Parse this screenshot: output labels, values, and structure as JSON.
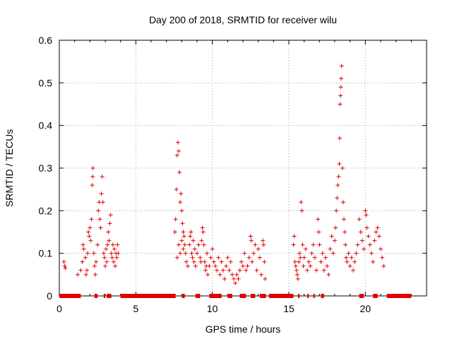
{
  "chart_data": {
    "type": "scatter",
    "title": "Day 200 of 2018, SRMTID for receiver wilu",
    "xlabel": "GPS time / hours",
    "ylabel": "SRMTID / TECUs",
    "xlim": [
      0,
      24
    ],
    "ylim": [
      0,
      0.6
    ],
    "xticks": [
      0,
      5,
      10,
      15,
      20
    ],
    "yticks": [
      0,
      0.1,
      0.2,
      0.3,
      0.4,
      0.5,
      0.6
    ],
    "xtick_labels": [
      "0",
      "5",
      "10",
      "15",
      "20"
    ],
    "ytick_labels": [
      "0",
      "0.1",
      "0.2",
      "0.3",
      "0.4",
      "0.5",
      "0.6"
    ],
    "grid": true,
    "marker": "+",
    "color": "#e00000",
    "series": [
      {
        "name": "SRMTID",
        "points": [
          [
            0.3,
            0.08
          ],
          [
            0.35,
            0.07
          ],
          [
            0.4,
            0.065
          ],
          [
            1.2,
            0.05
          ],
          [
            1.4,
            0.06
          ],
          [
            1.5,
            0.08
          ],
          [
            1.55,
            0.12
          ],
          [
            1.6,
            0.11
          ],
          [
            1.7,
            0.09
          ],
          [
            1.75,
            0.05
          ],
          [
            1.8,
            0.06
          ],
          [
            1.85,
            0.1
          ],
          [
            1.9,
            0.15
          ],
          [
            1.95,
            0.14
          ],
          [
            2.0,
            0.16
          ],
          [
            2.05,
            0.13
          ],
          [
            2.1,
            0.18
          ],
          [
            2.15,
            0.26
          ],
          [
            2.18,
            0.28
          ],
          [
            2.2,
            0.3
          ],
          [
            2.25,
            0.1
          ],
          [
            2.3,
            0.07
          ],
          [
            2.35,
            0.05
          ],
          [
            2.4,
            0.08
          ],
          [
            2.5,
            0.12
          ],
          [
            2.55,
            0.2
          ],
          [
            2.6,
            0.22
          ],
          [
            2.65,
            0.18
          ],
          [
            2.7,
            0.16
          ],
          [
            2.75,
            0.24
          ],
          [
            2.8,
            0.28
          ],
          [
            2.85,
            0.22
          ],
          [
            2.9,
            0.1
          ],
          [
            2.95,
            0.09
          ],
          [
            3.0,
            0.07
          ],
          [
            3.05,
            0.11
          ],
          [
            3.1,
            0.08
          ],
          [
            3.15,
            0.12
          ],
          [
            3.2,
            0.15
          ],
          [
            3.25,
            0.13
          ],
          [
            3.3,
            0.17
          ],
          [
            3.35,
            0.19
          ],
          [
            3.4,
            0.1
          ],
          [
            3.45,
            0.09
          ],
          [
            3.5,
            0.12
          ],
          [
            3.55,
            0.08
          ],
          [
            3.6,
            0.11
          ],
          [
            3.65,
            0.07
          ],
          [
            3.7,
            0.1
          ],
          [
            3.75,
            0.09
          ],
          [
            3.8,
            0.12
          ],
          [
            3.85,
            0.1
          ],
          [
            7.55,
            0.15
          ],
          [
            7.6,
            0.18
          ],
          [
            7.65,
            0.25
          ],
          [
            7.7,
            0.33
          ],
          [
            7.75,
            0.36
          ],
          [
            7.8,
            0.34
          ],
          [
            7.85,
            0.29
          ],
          [
            7.9,
            0.22
          ],
          [
            7.95,
            0.24
          ],
          [
            8.0,
            0.2
          ],
          [
            8.05,
            0.17
          ],
          [
            8.1,
            0.15
          ],
          [
            8.15,
            0.14
          ],
          [
            8.2,
            0.12
          ],
          [
            8.25,
            0.1
          ],
          [
            8.3,
            0.08
          ],
          [
            7.7,
            0.09
          ],
          [
            7.8,
            0.12
          ],
          [
            7.9,
            0.1
          ],
          [
            8.0,
            0.13
          ],
          [
            8.1,
            0.11
          ],
          [
            8.4,
            0.07
          ],
          [
            8.5,
            0.12
          ],
          [
            8.55,
            0.14
          ],
          [
            8.6,
            0.15
          ],
          [
            8.65,
            0.1
          ],
          [
            8.7,
            0.09
          ],
          [
            8.75,
            0.13
          ],
          [
            8.8,
            0.08
          ],
          [
            8.85,
            0.11
          ],
          [
            8.9,
            0.07
          ],
          [
            9.0,
            0.1
          ],
          [
            9.1,
            0.12
          ],
          [
            9.2,
            0.09
          ],
          [
            9.25,
            0.08
          ],
          [
            9.3,
            0.13
          ],
          [
            9.35,
            0.16
          ],
          [
            9.4,
            0.15
          ],
          [
            9.45,
            0.12
          ],
          [
            9.5,
            0.08
          ],
          [
            9.55,
            0.06
          ],
          [
            9.6,
            0.07
          ],
          [
            9.65,
            0.1
          ],
          [
            9.7,
            0.05
          ],
          [
            9.8,
            0.07
          ],
          [
            9.9,
            0.09
          ],
          [
            10.0,
            0.11
          ],
          [
            10.1,
            0.08
          ],
          [
            10.2,
            0.07
          ],
          [
            10.3,
            0.06
          ],
          [
            10.4,
            0.09
          ],
          [
            10.5,
            0.05
          ],
          [
            10.6,
            0.08
          ],
          [
            10.7,
            0.06
          ],
          [
            10.8,
            0.04
          ],
          [
            10.9,
            0.07
          ],
          [
            11.0,
            0.09
          ],
          [
            11.1,
            0.06
          ],
          [
            11.2,
            0.08
          ],
          [
            11.3,
            0.05
          ],
          [
            11.4,
            0.04
          ],
          [
            11.5,
            0.03
          ],
          [
            11.6,
            0.05
          ],
          [
            11.7,
            0.04
          ],
          [
            11.8,
            0.06
          ],
          [
            11.9,
            0.08
          ],
          [
            12.0,
            0.07
          ],
          [
            12.1,
            0.1
          ],
          [
            12.2,
            0.06
          ],
          [
            12.3,
            0.07
          ],
          [
            12.4,
            0.09
          ],
          [
            12.5,
            0.14
          ],
          [
            12.55,
            0.13
          ],
          [
            12.6,
            0.08
          ],
          [
            12.7,
            0.1
          ],
          [
            12.8,
            0.12
          ],
          [
            12.9,
            0.06
          ],
          [
            13.0,
            0.11
          ],
          [
            13.1,
            0.09
          ],
          [
            13.2,
            0.05
          ],
          [
            13.3,
            0.13
          ],
          [
            13.35,
            0.12
          ],
          [
            13.4,
            0.08
          ],
          [
            13.45,
            0.04
          ],
          [
            15.3,
            0.12
          ],
          [
            15.35,
            0.14
          ],
          [
            15.4,
            0.08
          ],
          [
            15.45,
            0.07
          ],
          [
            15.5,
            0.06
          ],
          [
            15.55,
            0.05
          ],
          [
            15.6,
            0.04
          ],
          [
            15.65,
            0.08
          ],
          [
            15.7,
            0.1
          ],
          [
            15.75,
            0.09
          ],
          [
            15.8,
            0.22
          ],
          [
            15.85,
            0.2
          ],
          [
            15.9,
            0.12
          ],
          [
            15.95,
            0.07
          ],
          [
            16.0,
            0.09
          ],
          [
            16.1,
            0.11
          ],
          [
            16.2,
            0.06
          ],
          [
            16.3,
            0.08
          ],
          [
            16.4,
            0.07
          ],
          [
            16.5,
            0.1
          ],
          [
            16.6,
            0.12
          ],
          [
            16.7,
            0.09
          ],
          [
            16.8,
            0.06
          ],
          [
            16.9,
            0.18
          ],
          [
            16.95,
            0.15
          ],
          [
            17.0,
            0.12
          ],
          [
            17.1,
            0.08
          ],
          [
            17.2,
            0.1
          ],
          [
            17.3,
            0.06
          ],
          [
            17.4,
            0.09
          ],
          [
            17.5,
            0.07
          ],
          [
            17.6,
            0.05
          ],
          [
            17.7,
            0.11
          ],
          [
            17.8,
            0.14
          ],
          [
            17.9,
            0.1
          ],
          [
            18.0,
            0.13
          ],
          [
            18.05,
            0.16
          ],
          [
            18.1,
            0.2
          ],
          [
            18.15,
            0.23
          ],
          [
            18.2,
            0.26
          ],
          [
            18.25,
            0.28
          ],
          [
            18.3,
            0.31
          ],
          [
            18.32,
            0.37
          ],
          [
            18.35,
            0.45
          ],
          [
            18.38,
            0.47
          ],
          [
            18.4,
            0.49
          ],
          [
            18.42,
            0.51
          ],
          [
            18.45,
            0.54
          ],
          [
            18.5,
            0.3
          ],
          [
            18.55,
            0.22
          ],
          [
            18.6,
            0.18
          ],
          [
            18.65,
            0.15
          ],
          [
            18.7,
            0.12
          ],
          [
            18.75,
            0.09
          ],
          [
            18.8,
            0.08
          ],
          [
            18.9,
            0.1
          ],
          [
            19.0,
            0.07
          ],
          [
            19.1,
            0.09
          ],
          [
            19.2,
            0.06
          ],
          [
            19.3,
            0.08
          ],
          [
            19.4,
            0.1
          ],
          [
            19.5,
            0.12
          ],
          [
            19.6,
            0.18
          ],
          [
            19.7,
            0.15
          ],
          [
            19.8,
            0.13
          ],
          [
            19.9,
            0.11
          ],
          [
            20.0,
            0.2
          ],
          [
            20.05,
            0.19
          ],
          [
            20.1,
            0.16
          ],
          [
            20.2,
            0.14
          ],
          [
            20.3,
            0.12
          ],
          [
            20.4,
            0.1
          ],
          [
            20.5,
            0.08
          ],
          [
            20.6,
            0.13
          ],
          [
            20.7,
            0.15
          ],
          [
            20.8,
            0.16
          ],
          [
            20.9,
            0.14
          ],
          [
            21.0,
            0.11
          ],
          [
            21.1,
            0.09
          ],
          [
            21.2,
            0.07
          ]
        ]
      }
    ],
    "zero_bands": [
      [
        0.0,
        1.4
      ],
      [
        2.3,
        2.5
      ],
      [
        2.9,
        3.0
      ],
      [
        3.1,
        3.4
      ],
      [
        4.0,
        7.6
      ],
      [
        8.0,
        8.2
      ],
      [
        8.9,
        9.2
      ],
      [
        9.8,
        10.6
      ],
      [
        11.0,
        11.3
      ],
      [
        11.8,
        12.2
      ],
      [
        12.5,
        12.8
      ],
      [
        13.1,
        13.5
      ],
      [
        13.7,
        15.3
      ],
      [
        15.6,
        15.7
      ],
      [
        16.2,
        16.3
      ],
      [
        16.6,
        16.7
      ],
      [
        17.1,
        17.3
      ],
      [
        19.6,
        19.9
      ],
      [
        20.5,
        20.8
      ],
      [
        21.4,
        23.0
      ]
    ]
  }
}
